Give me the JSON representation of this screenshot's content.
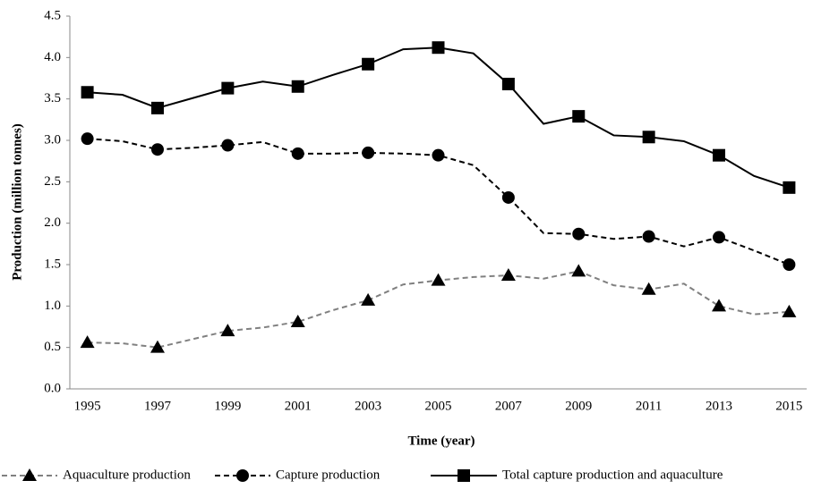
{
  "chart_data": {
    "type": "line",
    "y_label": "Production (million tonnes)",
    "x_label": "Time (year)",
    "categories": [
      "1995",
      null,
      "1997",
      null,
      "1999",
      null,
      "2001",
      null,
      "2003",
      null,
      "2005",
      null,
      "2007",
      null,
      "2009",
      null,
      "2011",
      null,
      "2013",
      null,
      "2015"
    ],
    "series": [
      {
        "name": "Aquaculture production",
        "color": "#808080",
        "marker_color": "#000000",
        "marker": "triangle",
        "dashed": true,
        "values": [
          0.56,
          0.55,
          0.5,
          0.6,
          0.7,
          0.74,
          0.81,
          0.95,
          1.07,
          1.26,
          1.31,
          1.35,
          1.37,
          1.33,
          1.42,
          1.25,
          1.2,
          1.27,
          1.0,
          0.9,
          0.93
        ]
      },
      {
        "name": "Capture production",
        "color": "#000000",
        "marker_color": "#000000",
        "marker": "circle",
        "dashed": true,
        "values": [
          3.02,
          2.99,
          2.89,
          2.91,
          2.94,
          2.98,
          2.84,
          2.84,
          2.85,
          2.84,
          2.82,
          2.7,
          2.31,
          1.88,
          1.87,
          1.81,
          1.84,
          1.72,
          1.83,
          1.67,
          1.5
        ]
      },
      {
        "name": "Total capture production and aquaculture",
        "color": "#000000",
        "marker_color": "#000000",
        "marker": "square",
        "dashed": false,
        "values": [
          3.58,
          3.55,
          3.39,
          3.51,
          3.63,
          3.71,
          3.65,
          3.79,
          3.92,
          4.1,
          4.12,
          4.05,
          3.68,
          3.2,
          3.29,
          3.06,
          3.04,
          2.99,
          2.82,
          2.57,
          2.43
        ]
      }
    ],
    "ylim": [
      0,
      4.5
    ],
    "yticks": [
      {
        "value": 0,
        "label": "0.0"
      },
      0.5,
      {
        "value": 1,
        "label": "1.0"
      },
      1.5,
      {
        "value": 2,
        "label": "2.0"
      },
      2.5,
      {
        "value": 3,
        "label": "3.0"
      },
      3.5,
      {
        "value": 4,
        "label": "4.0"
      },
      4.5
    ],
    "legend": "bottom"
  }
}
